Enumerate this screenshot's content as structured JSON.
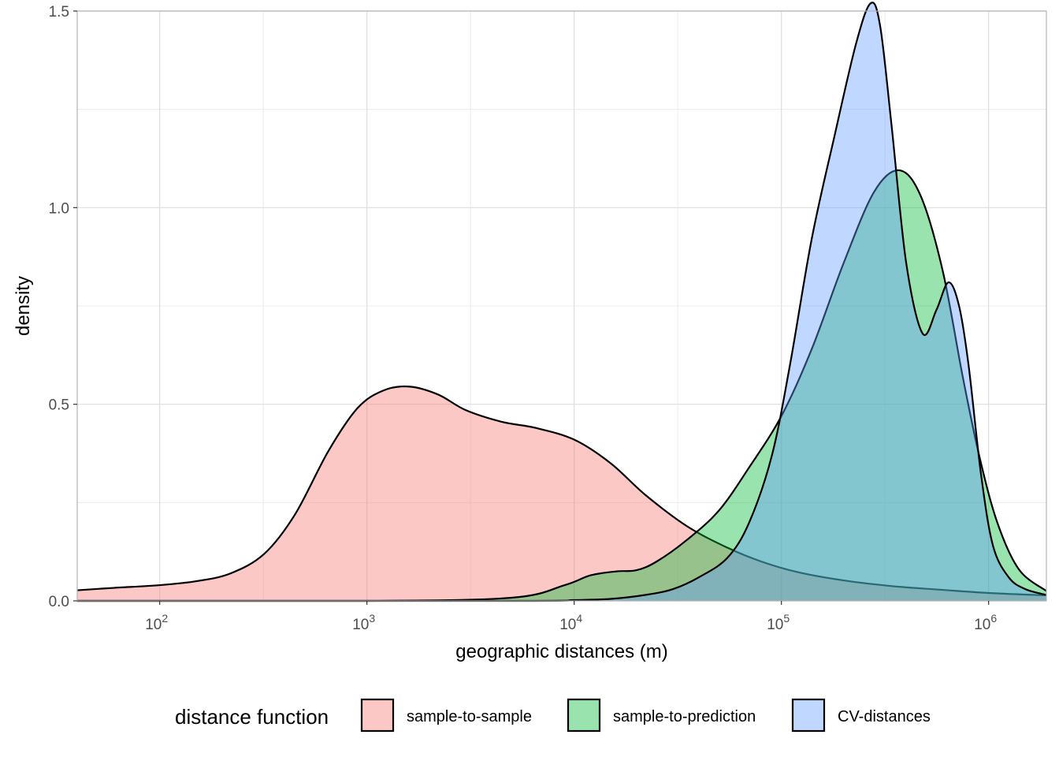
{
  "chart_data": {
    "type": "area",
    "x_scale": "log10",
    "xlabel": "geographic distances (m)",
    "ylabel": "density",
    "xlim": [
      40,
      1900000
    ],
    "ylim": [
      0,
      1.5
    ],
    "x_ticks": [
      {
        "value": 100,
        "base": "10",
        "exp": "2"
      },
      {
        "value": 1000,
        "base": "10",
        "exp": "3"
      },
      {
        "value": 10000,
        "base": "10",
        "exp": "4"
      },
      {
        "value": 100000,
        "base": "10",
        "exp": "5"
      },
      {
        "value": 1000000,
        "base": "10",
        "exp": "6"
      }
    ],
    "y_ticks": [
      {
        "value": 0.0,
        "label": "0.0"
      },
      {
        "value": 0.5,
        "label": "0.5"
      },
      {
        "value": 1.0,
        "label": "1.0"
      },
      {
        "value": 1.5,
        "label": "1.5"
      }
    ],
    "grid": true,
    "legend": {
      "title": "distance function",
      "position": "bottom"
    },
    "series": [
      {
        "name": "sample-to-sample",
        "color": "#F8766D",
        "x": [
          40,
          60,
          100,
          150,
          220,
          320,
          450,
          650,
          900,
          1200,
          1600,
          2200,
          3000,
          4500,
          6500,
          10000,
          15000,
          22000,
          35000,
          55000,
          80000,
          120000,
          200000,
          350000,
          600000,
          1000000,
          1900000
        ],
        "y": [
          0.027,
          0.033,
          0.04,
          0.05,
          0.07,
          0.12,
          0.22,
          0.38,
          0.49,
          0.535,
          0.545,
          0.525,
          0.485,
          0.455,
          0.44,
          0.41,
          0.35,
          0.27,
          0.19,
          0.135,
          0.1,
          0.073,
          0.052,
          0.037,
          0.028,
          0.02,
          0.014
        ]
      },
      {
        "name": "sample-to-prediction",
        "color": "#00BA38",
        "x": [
          40,
          1000,
          5000,
          9000,
          12000,
          16000,
          20000,
          25000,
          35000,
          50000,
          70000,
          100000,
          140000,
          200000,
          280000,
          370000,
          470000,
          600000,
          750000,
          900000,
          1100000,
          1400000,
          1900000
        ],
        "y": [
          0.0,
          0.0,
          0.008,
          0.04,
          0.065,
          0.075,
          0.078,
          0.1,
          0.155,
          0.23,
          0.34,
          0.47,
          0.64,
          0.86,
          1.04,
          1.095,
          1.03,
          0.84,
          0.57,
          0.37,
          0.2,
          0.08,
          0.025
        ]
      },
      {
        "name": "CV-distances",
        "color": "#619CFF",
        "x": [
          40,
          5000,
          10000,
          15000,
          22000,
          30000,
          40000,
          55000,
          70000,
          90000,
          110000,
          140000,
          180000,
          230000,
          270000,
          300000,
          340000,
          400000,
          480000,
          560000,
          640000,
          720000,
          800000,
          920000,
          1050000,
          1250000,
          1500000,
          1900000
        ],
        "y": [
          0.0,
          0.0,
          0.002,
          0.005,
          0.015,
          0.03,
          0.06,
          0.11,
          0.2,
          0.37,
          0.6,
          0.92,
          1.18,
          1.42,
          1.52,
          1.46,
          1.21,
          0.86,
          0.68,
          0.74,
          0.81,
          0.75,
          0.6,
          0.32,
          0.14,
          0.06,
          0.03,
          0.015
        ]
      }
    ]
  }
}
